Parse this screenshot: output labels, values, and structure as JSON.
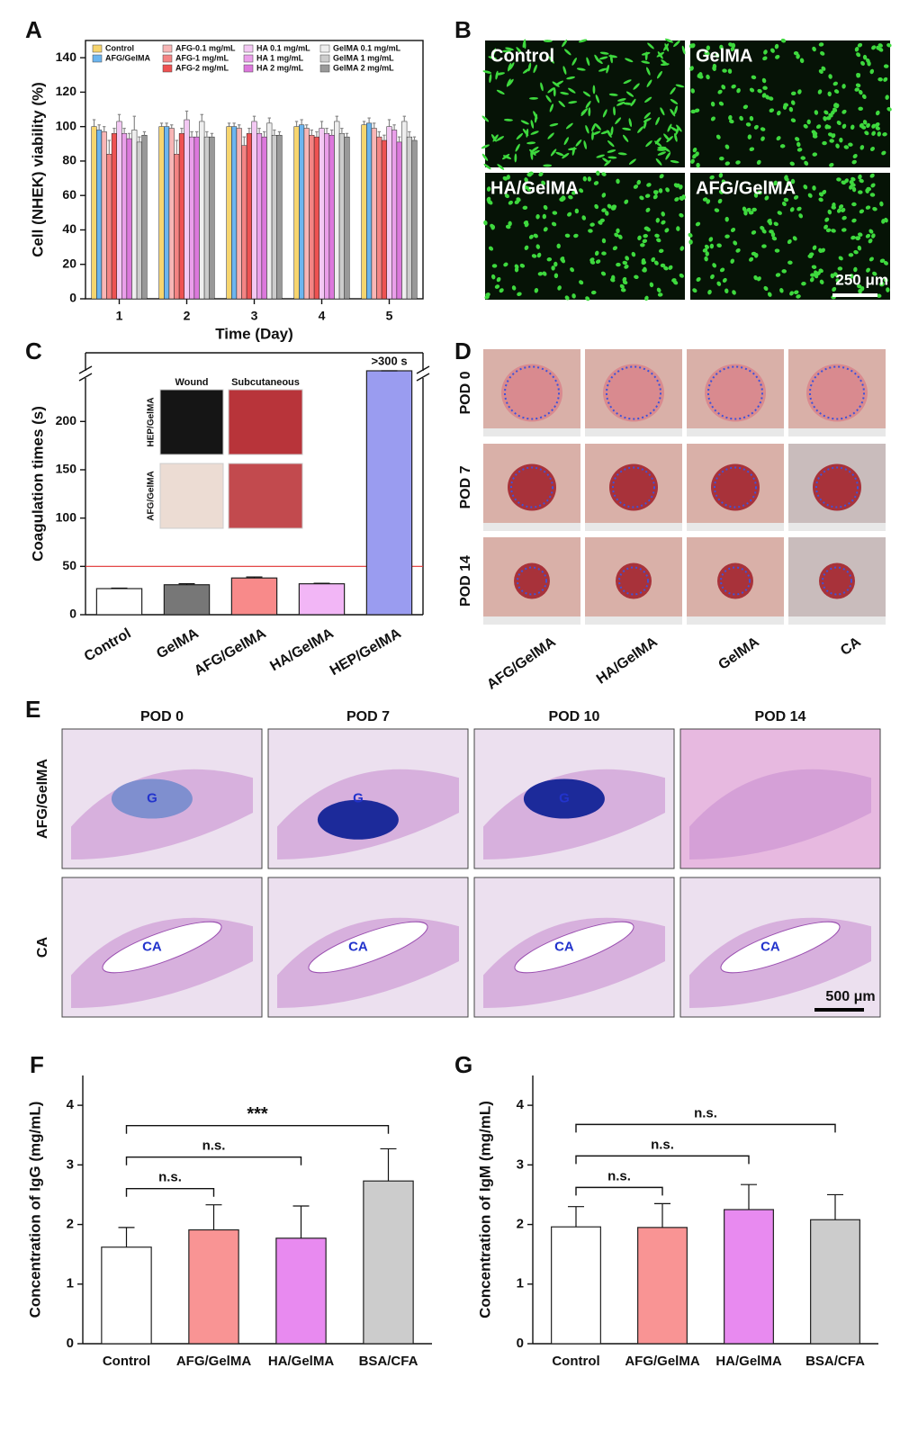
{
  "chart_data": [
    {
      "type": "bar",
      "label": "A",
      "ylabel": "Cell (NHEK) viability (%)",
      "xlabel": "Time (Day)",
      "categories": [
        "1",
        "2",
        "3",
        "4",
        "5"
      ],
      "ylim": [
        0,
        150
      ],
      "yticks": [
        0,
        20,
        40,
        60,
        80,
        100,
        120,
        140
      ],
      "legend": true,
      "series": [
        {
          "name": "Control",
          "color": "#f7d56e",
          "values": [
            100,
            100,
            100,
            100,
            101
          ],
          "errors": [
            4,
            2,
            2,
            3,
            2
          ]
        },
        {
          "name": "AFG/GelMA",
          "color": "#6cb5ef",
          "values": [
            98,
            100,
            100,
            101,
            102
          ],
          "errors": [
            3,
            2,
            2,
            3,
            3
          ]
        },
        {
          "name": "AFG-0.1 mg/mL",
          "color": "#f8b6b6",
          "values": [
            97,
            99,
            99,
            99,
            99
          ],
          "errors": [
            3,
            2,
            2,
            2,
            3
          ]
        },
        {
          "name": "AFG-1 mg/mL",
          "color": "#f48484",
          "values": [
            84,
            84,
            89,
            95,
            94
          ],
          "errors": [
            8,
            8,
            5,
            3,
            3
          ]
        },
        {
          "name": "AFG-2 mg/mL",
          "color": "#ee5252",
          "values": [
            96,
            96,
            96,
            94,
            92
          ],
          "errors": [
            3,
            3,
            3,
            3,
            3
          ]
        },
        {
          "name": "HA 0.1 mg/mL",
          "color": "#f3c8f3",
          "values": [
            103,
            104,
            103,
            99,
            100
          ],
          "errors": [
            4,
            5,
            3,
            4,
            4
          ]
        },
        {
          "name": "HA 1 mg/mL",
          "color": "#ea9fea",
          "values": [
            96,
            94,
            96,
            96,
            98
          ],
          "errors": [
            3,
            3,
            3,
            3,
            3
          ]
        },
        {
          "name": "HA 2 mg/mL",
          "color": "#dc78dc",
          "values": [
            93,
            94,
            94,
            95,
            91
          ],
          "errors": [
            3,
            3,
            3,
            3,
            3
          ]
        },
        {
          "name": "GelMA 0.1 mg/mL",
          "color": "#eeeeee",
          "values": [
            98,
            103,
            102,
            103,
            103
          ],
          "errors": [
            8,
            4,
            3,
            3,
            3
          ]
        },
        {
          "name": "GelMA 1 mg/mL",
          "color": "#cccccc",
          "values": [
            91,
            94,
            95,
            96,
            94
          ],
          "errors": [
            3,
            3,
            3,
            3,
            3
          ]
        },
        {
          "name": "GelMA 2 mg/mL",
          "color": "#999999",
          "values": [
            95,
            94,
            95,
            94,
            92
          ],
          "errors": [
            2,
            2,
            2,
            2,
            2
          ]
        }
      ]
    },
    {
      "type": "bar",
      "label": "C",
      "ylabel": "Coagulation times (s)",
      "categories": [
        "Control",
        "GelMA",
        "AFG/GelMA",
        "HA/GelMA",
        "HEP/GelMA"
      ],
      "values": [
        27,
        31,
        38,
        32,
        300
      ],
      "errors": [
        0.5,
        1,
        1,
        0.5,
        0
      ],
      "value_labels": [
        null,
        null,
        null,
        null,
        ">300 s"
      ],
      "colors": [
        "#ffffff",
        "#777777",
        "#f88a8a",
        "#f2b6f6",
        "#9a9cf0"
      ],
      "ylim": [
        0,
        320
      ],
      "ybreak": [
        245,
        300
      ],
      "yticks": [
        0,
        50,
        100,
        150,
        200
      ],
      "reference_line": {
        "value": 50,
        "color": "#e03030"
      }
    },
    {
      "type": "bar",
      "label": "F",
      "ylabel": "Concentration of IgG (mg/mL)",
      "categories": [
        "Control",
        "AFG/GelMA",
        "HA/GelMA",
        "BSA/CFA"
      ],
      "values": [
        1.62,
        1.91,
        1.77,
        2.73
      ],
      "errors": [
        0.33,
        0.42,
        0.54,
        0.54
      ],
      "colors": [
        "#ffffff",
        "#f99494",
        "#e88af0",
        "#cccccc"
      ],
      "ylim": [
        0,
        4.5
      ],
      "yticks": [
        0,
        1,
        2,
        3,
        4
      ],
      "significance": [
        {
          "from": 0,
          "to": 1,
          "label": "n.s."
        },
        {
          "from": 0,
          "to": 2,
          "label": "n.s."
        },
        {
          "from": 0,
          "to": 3,
          "label": "***"
        }
      ]
    },
    {
      "type": "bar",
      "label": "G",
      "ylabel": "Concentration of IgM (mg/mL)",
      "categories": [
        "Control",
        "AFG/GelMA",
        "HA/GelMA",
        "BSA/CFA"
      ],
      "values": [
        1.96,
        1.95,
        2.25,
        2.08
      ],
      "errors": [
        0.34,
        0.4,
        0.42,
        0.42
      ],
      "colors": [
        "#ffffff",
        "#f99494",
        "#e88af0",
        "#cccccc"
      ],
      "ylim": [
        0,
        4.5
      ],
      "yticks": [
        0,
        1,
        2,
        3,
        4
      ],
      "significance": [
        {
          "from": 0,
          "to": 1,
          "label": "n.s."
        },
        {
          "from": 0,
          "to": 2,
          "label": "n.s."
        },
        {
          "from": 0,
          "to": 3,
          "label": "n.s."
        }
      ]
    }
  ],
  "images": {
    "B": {
      "label": "B",
      "tiles": [
        "Control",
        "GelMA",
        "HA/GelMA",
        "AFG/GelMA"
      ],
      "scale": "250 μm"
    },
    "C_inset": {
      "columns": [
        "Wound",
        "Subcutaneous"
      ],
      "rows": [
        "HEP/GelMA",
        "AFG/GelMA"
      ]
    },
    "D": {
      "label": "D",
      "rows": [
        "POD 0",
        "POD 7",
        "POD 14"
      ],
      "columns": [
        "AFG/GelMA",
        "HA/GelMA",
        "GelMA",
        "CA"
      ]
    },
    "E": {
      "label": "E",
      "columns": [
        "POD 0",
        "POD 7",
        "POD 10",
        "POD 14"
      ],
      "rows": [
        "AFG/GelMA",
        "CA"
      ],
      "annotations": [
        [
          "G",
          "G",
          "G",
          null
        ],
        [
          "CA",
          "CA",
          "CA",
          "CA"
        ]
      ],
      "scale": "500 μm"
    }
  }
}
